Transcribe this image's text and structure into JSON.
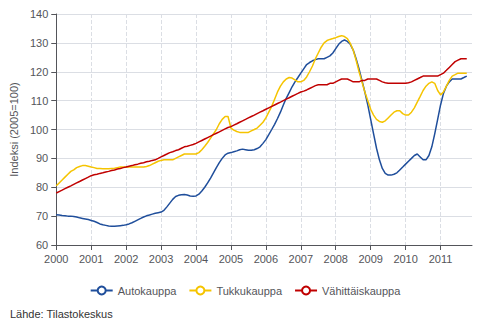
{
  "chart_data": {
    "type": "line",
    "ylabel": "Indeksi (2005=100)",
    "annotations": [
      "Lähde: Tilastokeskus"
    ],
    "xlim": [
      2000.0,
      2011.9
    ],
    "xticks": [
      2000,
      2001,
      2002,
      2003,
      2004,
      2005,
      2006,
      2007,
      2008,
      2009,
      2010,
      2011
    ],
    "ylim": [
      60,
      140
    ],
    "yticks": [
      60,
      70,
      80,
      90,
      100,
      110,
      120,
      130,
      140
    ],
    "grid": true,
    "legend": "bottom",
    "x": [
      2000.0,
      2000.083,
      2000.167,
      2000.25,
      2000.333,
      2000.417,
      2000.5,
      2000.583,
      2000.667,
      2000.75,
      2000.833,
      2000.917,
      2001.0,
      2001.083,
      2001.167,
      2001.25,
      2001.333,
      2001.417,
      2001.5,
      2001.583,
      2001.667,
      2001.75,
      2001.833,
      2001.917,
      2002.0,
      2002.083,
      2002.167,
      2002.25,
      2002.333,
      2002.417,
      2002.5,
      2002.583,
      2002.667,
      2002.75,
      2002.833,
      2002.917,
      2003.0,
      2003.083,
      2003.167,
      2003.25,
      2003.333,
      2003.417,
      2003.5,
      2003.583,
      2003.667,
      2003.75,
      2003.833,
      2003.917,
      2004.0,
      2004.083,
      2004.167,
      2004.25,
      2004.333,
      2004.417,
      2004.5,
      2004.583,
      2004.667,
      2004.75,
      2004.833,
      2004.917,
      2005.0,
      2005.083,
      2005.167,
      2005.25,
      2005.333,
      2005.417,
      2005.5,
      2005.583,
      2005.667,
      2005.75,
      2005.833,
      2005.917,
      2006.0,
      2006.083,
      2006.167,
      2006.25,
      2006.333,
      2006.417,
      2006.5,
      2006.583,
      2006.667,
      2006.75,
      2006.833,
      2006.917,
      2007.0,
      2007.083,
      2007.167,
      2007.25,
      2007.333,
      2007.417,
      2007.5,
      2007.583,
      2007.667,
      2007.75,
      2007.833,
      2007.917,
      2008.0,
      2008.083,
      2008.167,
      2008.25,
      2008.333,
      2008.417,
      2008.5,
      2008.583,
      2008.667,
      2008.75,
      2008.833,
      2008.917,
      2009.0,
      2009.083,
      2009.167,
      2009.25,
      2009.333,
      2009.417,
      2009.5,
      2009.583,
      2009.667,
      2009.75,
      2009.833,
      2009.917,
      2010.0,
      2010.083,
      2010.167,
      2010.25,
      2010.333,
      2010.417,
      2010.5,
      2010.583,
      2010.667,
      2010.75,
      2010.833,
      2010.917,
      2011.0,
      2011.083,
      2011.167,
      2011.25,
      2011.333,
      2011.417,
      2011.5,
      2011.583,
      2011.667,
      2011.75
    ],
    "series": [
      {
        "name": "Autokauppa",
        "color": "#1F4E9B",
        "values": [
          70.5,
          70.4,
          70.2,
          70.1,
          70.0,
          70.0,
          69.9,
          69.7,
          69.4,
          69.2,
          69.0,
          68.8,
          68.5,
          68.2,
          67.8,
          67.3,
          67.0,
          66.8,
          66.6,
          66.5,
          66.5,
          66.6,
          66.7,
          66.8,
          67.0,
          67.3,
          67.7,
          68.2,
          68.7,
          69.2,
          69.7,
          70.1,
          70.4,
          70.7,
          71.0,
          71.2,
          71.4,
          72.0,
          73.2,
          74.5,
          75.8,
          76.8,
          77.2,
          77.4,
          77.5,
          77.3,
          77.0,
          76.9,
          77.0,
          77.6,
          78.7,
          80.0,
          81.5,
          83.2,
          85.0,
          86.8,
          88.5,
          90.0,
          91.2,
          91.8,
          92.0,
          92.3,
          92.6,
          93.0,
          93.2,
          93.0,
          92.8,
          92.8,
          93.0,
          93.4,
          94.0,
          95.2,
          96.5,
          98.2,
          100.0,
          101.8,
          103.8,
          106.0,
          108.5,
          110.8,
          112.8,
          114.8,
          116.5,
          118.0,
          119.5,
          121.0,
          122.5,
          123.2,
          123.8,
          124.2,
          124.5,
          124.5,
          124.5,
          125.0,
          125.5,
          126.5,
          128.0,
          129.5,
          130.5,
          131.0,
          130.5,
          129.5,
          127.5,
          124.5,
          121.0,
          117.0,
          113.0,
          108.5,
          103.5,
          98.5,
          93.5,
          89.5,
          86.5,
          84.8,
          84.2,
          84.2,
          84.5,
          85.0,
          86.0,
          87.0,
          88.0,
          89.0,
          90.0,
          91.0,
          91.5,
          90.5,
          89.5,
          89.5,
          91.0,
          94.0,
          98.5,
          103.5,
          108.5,
          112.5,
          115.0,
          116.5,
          117.5,
          117.5,
          117.5,
          117.5,
          118.0,
          118.5
        ]
      },
      {
        "name": "Tukkukauppa",
        "color": "#F5C400",
        "values": [
          80.5,
          81.5,
          82.5,
          83.5,
          84.5,
          85.5,
          86.0,
          86.8,
          87.2,
          87.5,
          87.5,
          87.3,
          87.0,
          86.8,
          86.5,
          86.5,
          86.4,
          86.4,
          86.4,
          86.5,
          86.6,
          86.8,
          87.0,
          87.0,
          87.0,
          87.0,
          87.0,
          87.0,
          87.0,
          87.0,
          87.0,
          87.2,
          87.5,
          88.0,
          88.5,
          89.0,
          89.3,
          89.5,
          89.5,
          89.5,
          89.5,
          90.0,
          90.5,
          91.0,
          91.5,
          91.5,
          91.5,
          91.5,
          91.5,
          92.0,
          93.0,
          94.2,
          95.5,
          97.0,
          98.5,
          100.0,
          102.0,
          103.5,
          104.5,
          104.5,
          100.5,
          99.8,
          99.3,
          99.0,
          99.0,
          99.0,
          99.0,
          99.5,
          100.0,
          100.5,
          101.5,
          102.5,
          104.0,
          106.0,
          108.0,
          110.5,
          113.0,
          115.0,
          116.5,
          117.5,
          118.0,
          117.8,
          117.2,
          116.5,
          116.5,
          117.0,
          118.2,
          120.0,
          122.0,
          124.5,
          126.5,
          128.5,
          130.0,
          130.8,
          131.2,
          131.5,
          131.8,
          132.2,
          132.5,
          132.2,
          131.5,
          129.8,
          127.5,
          124.0,
          120.0,
          116.5,
          113.0,
          110.0,
          107.0,
          105.0,
          103.5,
          102.8,
          102.5,
          103.0,
          104.0,
          105.0,
          106.0,
          106.5,
          106.5,
          105.5,
          105.0,
          105.0,
          106.0,
          107.5,
          109.5,
          111.5,
          113.5,
          115.0,
          116.0,
          116.5,
          116.0,
          113.5,
          112.0,
          113.0,
          115.0,
          117.0,
          118.5,
          119.0,
          119.5,
          119.5,
          119.5,
          119.5
        ]
      },
      {
        "name": "Vähittäiskauppa",
        "color": "#C00000",
        "values": [
          78.0,
          78.5,
          79.0,
          79.5,
          80.0,
          80.5,
          81.0,
          81.5,
          82.0,
          82.5,
          83.0,
          83.5,
          84.0,
          84.3,
          84.5,
          84.8,
          85.0,
          85.3,
          85.5,
          85.8,
          86.0,
          86.3,
          86.5,
          86.8,
          87.0,
          87.3,
          87.5,
          87.8,
          88.0,
          88.3,
          88.5,
          88.8,
          89.0,
          89.3,
          89.5,
          90.0,
          90.5,
          91.0,
          91.5,
          92.0,
          92.3,
          92.7,
          93.0,
          93.5,
          94.0,
          94.2,
          94.5,
          94.8,
          95.2,
          95.7,
          96.2,
          96.7,
          97.2,
          97.7,
          98.2,
          98.7,
          99.2,
          99.7,
          100.2,
          100.7,
          101.0,
          101.5,
          102.0,
          102.5,
          103.0,
          103.5,
          104.0,
          104.5,
          105.0,
          105.5,
          106.0,
          106.5,
          107.0,
          107.5,
          108.0,
          108.5,
          109.0,
          109.5,
          110.0,
          110.5,
          111.0,
          111.5,
          112.0,
          112.5,
          113.0,
          113.3,
          113.7,
          114.2,
          114.7,
          115.2,
          115.5,
          115.5,
          115.5,
          115.5,
          116.0,
          116.0,
          116.5,
          117.0,
          117.5,
          117.5,
          117.5,
          117.0,
          116.5,
          116.5,
          116.5,
          117.0,
          117.0,
          117.5,
          117.5,
          117.5,
          117.5,
          117.0,
          116.5,
          116.2,
          116.0,
          116.0,
          116.0,
          116.0,
          116.0,
          116.0,
          116.0,
          116.2,
          116.5,
          117.0,
          117.5,
          118.0,
          118.5,
          118.5,
          118.5,
          118.5,
          118.5,
          118.5,
          119.0,
          119.5,
          120.5,
          121.5,
          122.5,
          123.5,
          124.0,
          124.5,
          124.5,
          124.5
        ]
      }
    ]
  }
}
